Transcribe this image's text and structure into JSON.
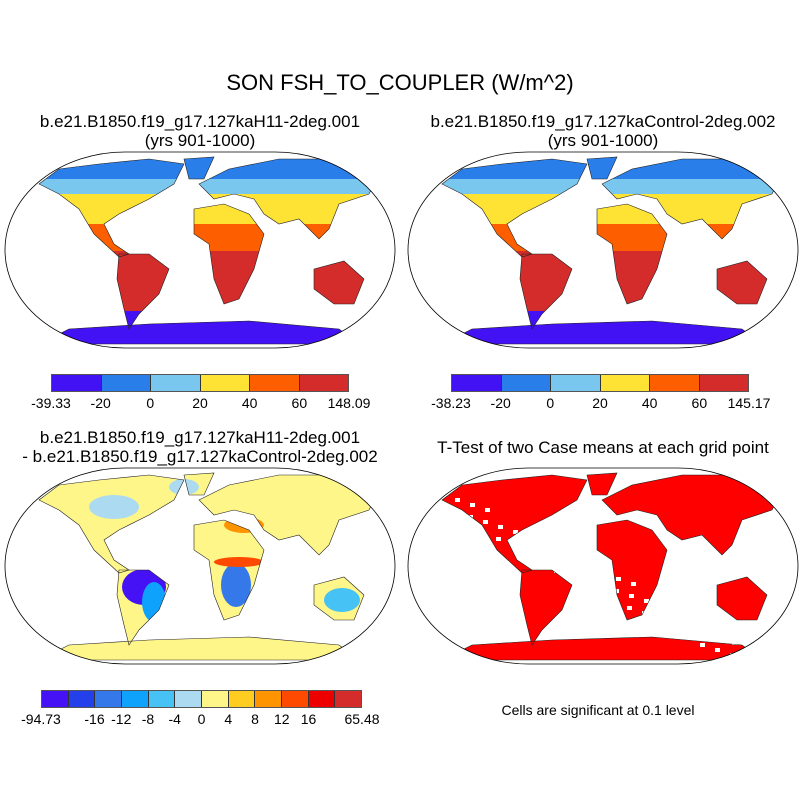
{
  "title": "SON FSH_TO_COUPLER (W/m^2)",
  "panels": [
    {
      "title": "b.e21.B1850.f19_g17.127kaH11-2deg.001",
      "subtitle": "(yrs 901-1000)"
    },
    {
      "title": "b.e21.B1850.f19_g17.127kaControl-2deg.002",
      "subtitle": "(yrs 901-1000)"
    },
    {
      "title": "b.e21.B1850.f19_g17.127kaH11-2deg.001",
      "subtitle": "- b.e21.B1850.f19_g17.127kaControl-2deg.002"
    },
    {
      "title": "T-Test of two Case means at each grid point",
      "subtitle": ""
    }
  ],
  "colorbars": [
    {
      "colors": [
        "#4212f5",
        "#2a7eea",
        "#79c7ee",
        "#fee234",
        "#fd5f00",
        "#d42b2b"
      ],
      "labels": [
        "-39.33",
        "-20",
        "0",
        "20",
        "40",
        "60",
        "148.09"
      ]
    },
    {
      "colors": [
        "#4212f5",
        "#2a7eea",
        "#79c7ee",
        "#fee234",
        "#fd5f00",
        "#d42b2b"
      ],
      "labels": [
        "-38.23",
        "-20",
        "0",
        "20",
        "40",
        "60",
        "145.17"
      ]
    },
    {
      "colors": [
        "#4412f5",
        "#2440ea",
        "#3478ea",
        "#0fa2fd",
        "#46c2f5",
        "#acdaf0",
        "#fff68a",
        "#ffcc22",
        "#fd9400",
        "#fd4a00",
        "#ee0000",
        "#d42b2b"
      ],
      "labels": [
        "-94.73",
        "",
        "-16",
        "-12",
        "-8",
        "-4",
        "0",
        "4",
        "8",
        "12",
        "16",
        "",
        "65.48"
      ]
    }
  ],
  "note": "Cells are significant at 0.1 level"
}
